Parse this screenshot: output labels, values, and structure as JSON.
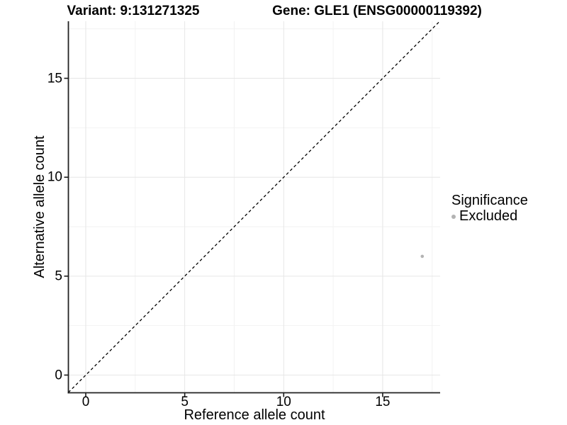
{
  "header": {
    "variant_title": "Variant: 9:131271325",
    "gene_title": "Gene: GLE1 (ENSG00000119392)"
  },
  "axes": {
    "x": {
      "title": "Reference allele count"
    },
    "y": {
      "title": "Alternative allele count"
    }
  },
  "legend": {
    "title": "Significance",
    "items": [
      {
        "label": "Excluded",
        "color": "#b3b3b3"
      }
    ]
  },
  "chart_data": {
    "type": "scatter",
    "title": "Variant: 9:131271325   Gene: GLE1 (ENSG00000119392)",
    "xlabel": "Reference allele count",
    "ylabel": "Alternative allele count",
    "xlim": [
      -0.877,
      17.903
    ],
    "ylim": [
      -0.895,
      17.884
    ],
    "x_ticks": [
      0,
      5,
      10,
      15
    ],
    "y_ticks": [
      0,
      5,
      10,
      15
    ],
    "x_minor_ticks": [
      2.5,
      7.5,
      12.5,
      17.5
    ],
    "y_minor_ticks": [
      2.5,
      7.5,
      12.5,
      17.5
    ],
    "grid": true,
    "legend_position": "right",
    "series": [
      {
        "name": "Excluded",
        "color": "#b3b3b3",
        "points": [
          {
            "x": 17,
            "y": 6
          }
        ]
      }
    ],
    "reference_line": {
      "type": "identity",
      "style": "dashed",
      "color": "#000000"
    },
    "style": {
      "major_grid_color": "#e6e6e6",
      "minor_grid_color": "#f2f2f2",
      "axis_line_color": "#222222",
      "tick_color": "#1a1a1a",
      "background": "#ffffff"
    }
  }
}
